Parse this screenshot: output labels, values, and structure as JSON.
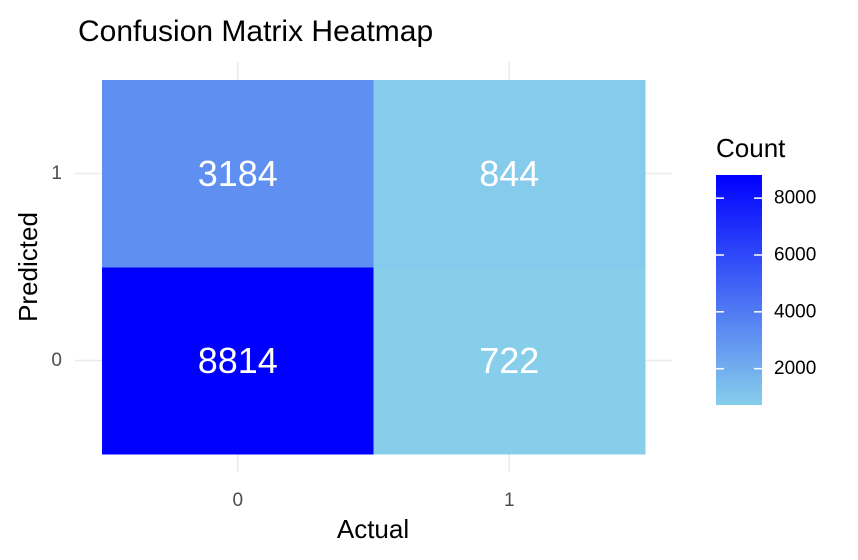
{
  "chart_data": {
    "type": "heatmap",
    "title": "Confusion Matrix Heatmap",
    "xlabel": "Actual",
    "ylabel": "Predicted",
    "x_categories": [
      "0",
      "1"
    ],
    "y_categories": [
      "0",
      "1"
    ],
    "cells": [
      {
        "x": "0",
        "y": "0",
        "value": 8814,
        "label": "8814"
      },
      {
        "x": "1",
        "y": "0",
        "value": 722,
        "label": "722"
      },
      {
        "x": "0",
        "y": "1",
        "value": 3184,
        "label": "3184"
      },
      {
        "x": "1",
        "y": "1",
        "value": 844,
        "label": "844"
      }
    ],
    "legend": {
      "title": "Count",
      "placement": "right",
      "ticks": [
        2000,
        4000,
        6000,
        8000
      ],
      "tick_labels": [
        "2000",
        "4000",
        "6000",
        "8000"
      ],
      "range": [
        722,
        8814
      ],
      "low_color": "#87CEEB",
      "high_color": "#0000FF"
    },
    "grid": true
  }
}
